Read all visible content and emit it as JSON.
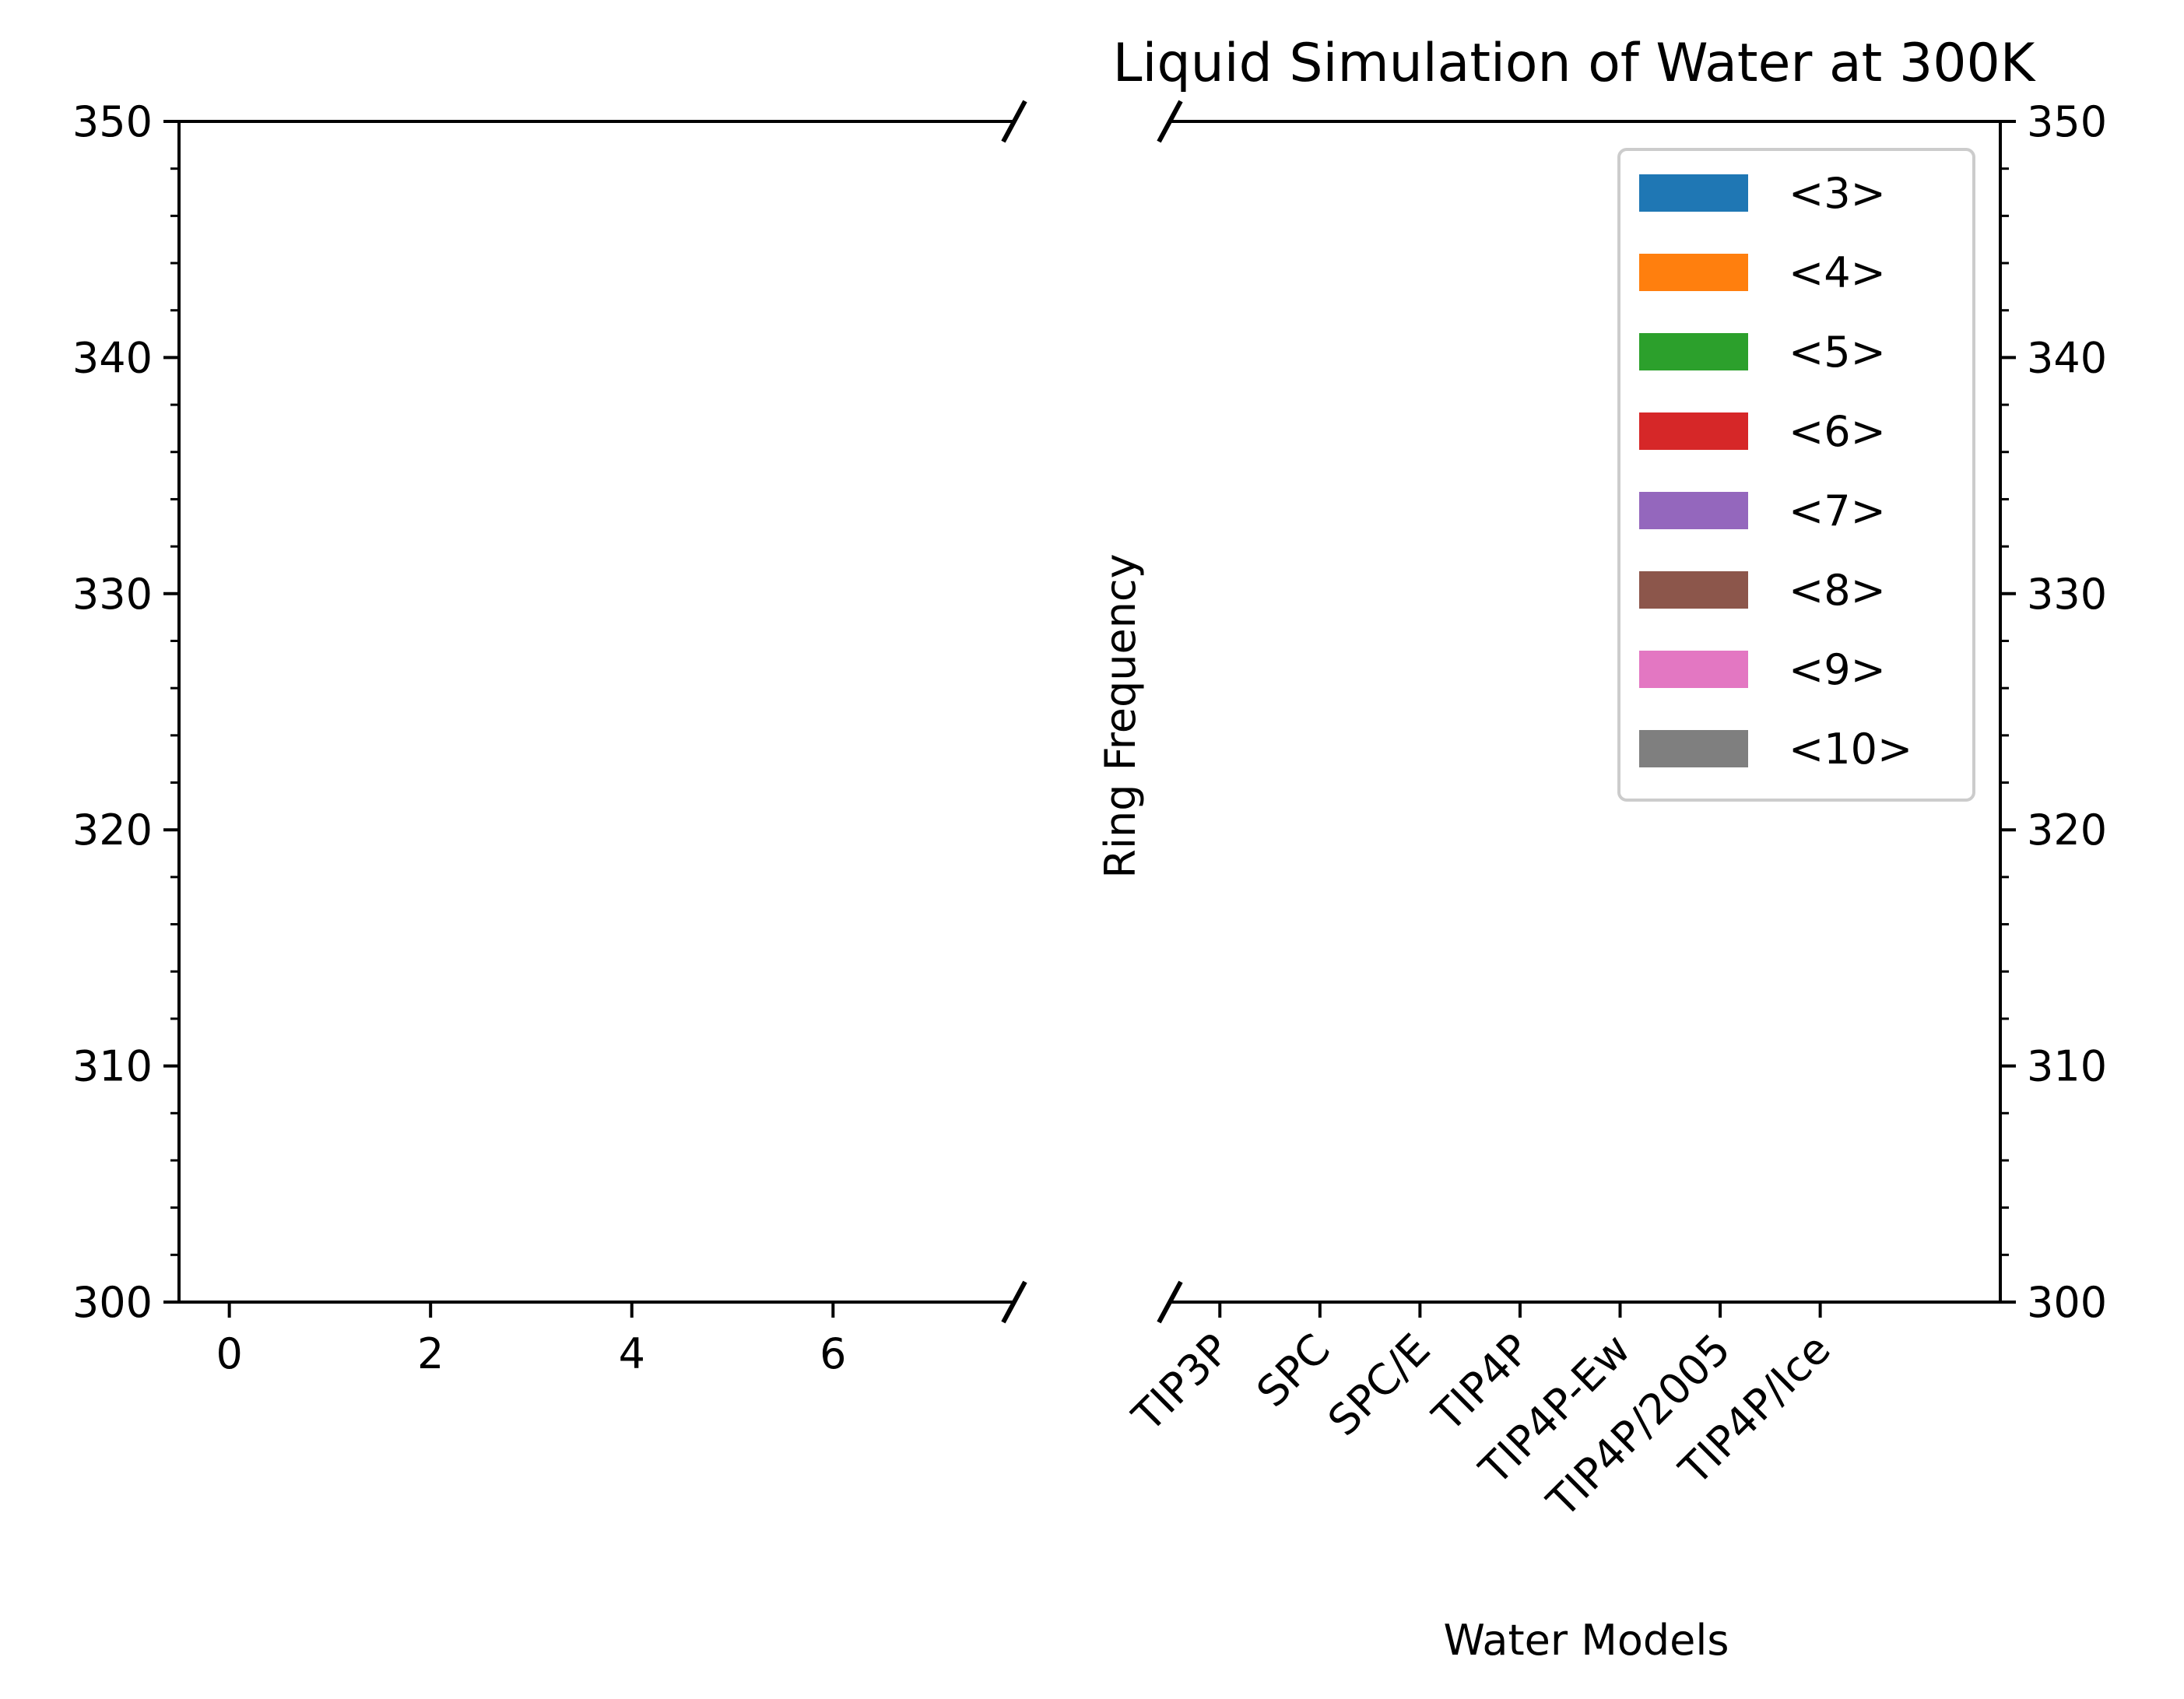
{
  "chart_data": {
    "type": "bar",
    "title": "Liquid Simulation of Water at 300K",
    "xlabel": "Water Models",
    "ylabel": "Ring Frequency",
    "ylim": [
      300,
      350
    ],
    "yticks": [
      "300",
      "310",
      "320",
      "330",
      "340",
      "350"
    ],
    "broken_x_axis": true,
    "left_panel": {
      "xlim": [
        -0.5,
        7.8
      ],
      "xticks": [
        0,
        2,
        4,
        6
      ],
      "xtick_labels": [
        "0",
        "2",
        "4",
        "6"
      ]
    },
    "right_panel": {
      "categories": [
        "TIP3P",
        "SPC",
        "SPC/E",
        "TIP4P",
        "TIP4P-Ew",
        "TIP4P/2005",
        "TIP4P/Ice"
      ],
      "category_positions": [
        9,
        10,
        11,
        12,
        13,
        14,
        15
      ],
      "xlim": [
        8.5,
        16.8
      ]
    },
    "series": [
      {
        "name": "<3>",
        "color": "#1f77b4",
        "values": []
      },
      {
        "name": "<4>",
        "color": "#ff7f0e",
        "values": []
      },
      {
        "name": "<5>",
        "color": "#2ca02c",
        "values": []
      },
      {
        "name": "<6>",
        "color": "#d62728",
        "values": []
      },
      {
        "name": "<7>",
        "color": "#9467bd",
        "values": []
      },
      {
        "name": "<8>",
        "color": "#8c564b",
        "values": []
      },
      {
        "name": "<9>",
        "color": "#e377c2",
        "values": []
      },
      {
        "name": "<10>",
        "color": "#7f7f7f",
        "values": []
      }
    ],
    "legend_position": "upper right",
    "grid": false
  }
}
